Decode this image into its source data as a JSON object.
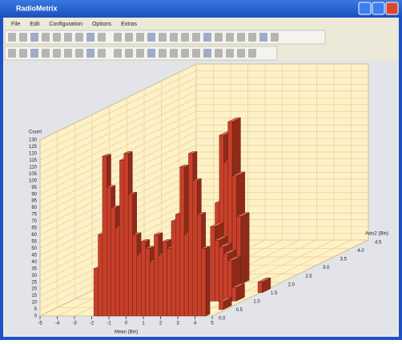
{
  "window": {
    "title": "RadioMetrix",
    "menu": [
      "File",
      "Edit",
      "Configuration",
      "Options",
      "Extras"
    ]
  },
  "chart_data": {
    "type": "bar3d",
    "ylabel": "Count",
    "xlabel": "Mean (Bin)",
    "zlabel": "Axis2 (Bin)",
    "xlim": [
      -5,
      5
    ],
    "xticks": [
      -5,
      -4,
      -3,
      -2,
      -1,
      0,
      1,
      2,
      3,
      4,
      5
    ],
    "ylim": [
      0,
      130
    ],
    "yticks": [
      0,
      5,
      10,
      15,
      20,
      25,
      30,
      35,
      40,
      45,
      50,
      55,
      60,
      65,
      70,
      75,
      80,
      85,
      90,
      95,
      100,
      105,
      110,
      115,
      120,
      125,
      130
    ],
    "zlim": [
      0,
      4.5
    ],
    "zticks": [
      {
        "value": 0,
        "label": "0.0"
      },
      0.5,
      {
        "value": 1,
        "label": "1.0"
      },
      1.5,
      {
        "value": 2,
        "label": "2.0"
      },
      2.5,
      {
        "value": 3,
        "label": "3.0"
      },
      3.5,
      {
        "value": 4,
        "label": "4.0"
      },
      4.5
    ],
    "grid": true,
    "color": "#c8402a",
    "x": [
      1.5,
      1.75,
      2,
      2.25,
      2.5,
      2.75,
      5,
      3.25,
      3.5,
      3.75,
      4,
      4.25,
      4.5,
      4.75,
      -1.75,
      -1.5,
      -1.25,
      -1,
      -0.75,
      -0.5,
      -0.25,
      0,
      0.25,
      0.5,
      0.75,
      1,
      1.25,
      1.5,
      1.75,
      2,
      2.25,
      2.5,
      2.75,
      3,
      3.25,
      3.5,
      3.75,
      4,
      4.25,
      4.5
    ],
    "z": [
      2,
      2,
      2,
      2,
      2,
      2,
      1.5,
      1,
      1,
      1,
      1,
      1,
      1,
      0.5,
      0,
      0,
      0,
      0,
      0,
      0,
      0,
      0,
      0,
      0,
      0,
      0,
      0,
      0,
      0,
      0,
      0,
      0,
      0,
      0,
      0,
      0,
      0,
      0,
      0,
      0
    ],
    "values": [
      60,
      110,
      90,
      120,
      80,
      50,
      8,
      55,
      45,
      40,
      35,
      30,
      10,
      6,
      35,
      60,
      118,
      95,
      80,
      65,
      115,
      120,
      90,
      60,
      45,
      55,
      50,
      40,
      60,
      45,
      55,
      50,
      70,
      75,
      110,
      60,
      120,
      100,
      75,
      50
    ]
  }
}
